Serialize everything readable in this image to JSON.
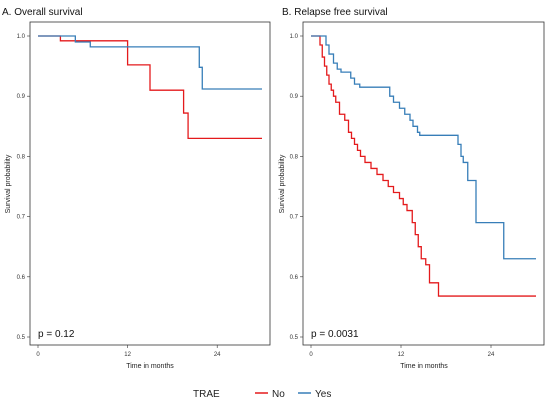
{
  "legend": {
    "title": "TRAE",
    "items": [
      "No",
      "Yes"
    ]
  },
  "colors": {
    "No": "#e41a1c",
    "Yes": "#377eb8"
  },
  "chart_data": [
    {
      "type": "line",
      "title": "A. Overall survival",
      "xlabel": "Time in months",
      "ylabel": "Survival probability",
      "xlim": [
        0,
        30
      ],
      "ylim": [
        0.5,
        1.0
      ],
      "xticks": [
        0,
        12,
        24
      ],
      "yticks": [
        0.5,
        0.6,
        0.7,
        0.8,
        0.9,
        1.0
      ],
      "grid": false,
      "annotation": "p = 0.12",
      "step": true,
      "series": [
        {
          "name": "No",
          "x": [
            0,
            3,
            12,
            12,
            15,
            15,
            19.5,
            19.5,
            20.1,
            20.1,
            30
          ],
          "y": [
            1.0,
            0.992,
            0.992,
            0.952,
            0.952,
            0.91,
            0.91,
            0.872,
            0.872,
            0.83,
            0.83
          ]
        },
        {
          "name": "Yes",
          "x": [
            0,
            5,
            5,
            7,
            7,
            21.6,
            21.6,
            22,
            22,
            30
          ],
          "y": [
            1.0,
            1.0,
            0.99,
            0.99,
            0.982,
            0.982,
            0.948,
            0.948,
            0.912,
            0.912
          ]
        }
      ]
    },
    {
      "type": "line",
      "title": "B. Relapse free survival",
      "xlabel": "Time in months",
      "ylabel": "Survival probability",
      "xlim": [
        0,
        30
      ],
      "ylim": [
        0.5,
        1.0
      ],
      "xticks": [
        0,
        12,
        24
      ],
      "yticks": [
        0.5,
        0.6,
        0.7,
        0.8,
        0.9,
        1.0
      ],
      "grid": false,
      "annotation": "p = 0.0031",
      "step": true,
      "series": [
        {
          "name": "No",
          "x": [
            0,
            1.2,
            1.5,
            1.8,
            2.1,
            2.4,
            2.7,
            3.0,
            3.3,
            3.8,
            4.5,
            5.0,
            5.4,
            5.8,
            6.2,
            6.6,
            7.2,
            8.0,
            8.8,
            9.6,
            10.3,
            11.0,
            11.8,
            12.3,
            12.8,
            13.5,
            13.9,
            14.3,
            14.7,
            15.3,
            15.8,
            17.0,
            30
          ],
          "y": [
            1.0,
            0.985,
            0.965,
            0.95,
            0.935,
            0.92,
            0.91,
            0.9,
            0.89,
            0.87,
            0.86,
            0.84,
            0.83,
            0.82,
            0.81,
            0.8,
            0.79,
            0.78,
            0.77,
            0.76,
            0.75,
            0.74,
            0.73,
            0.72,
            0.71,
            0.69,
            0.67,
            0.65,
            0.63,
            0.62,
            0.59,
            0.568,
            0.568
          ]
        },
        {
          "name": "Yes",
          "x": [
            0,
            2,
            2.4,
            3,
            3.5,
            4,
            5.3,
            5.8,
            6.5,
            8,
            10.5,
            11,
            11.8,
            12.5,
            13.2,
            13.6,
            14.2,
            14.5,
            19,
            19.6,
            20,
            20.3,
            20.9,
            22,
            25,
            25.7,
            30
          ],
          "y": [
            1.0,
            0.985,
            0.97,
            0.955,
            0.945,
            0.94,
            0.93,
            0.92,
            0.915,
            0.915,
            0.9,
            0.89,
            0.88,
            0.87,
            0.86,
            0.85,
            0.84,
            0.835,
            0.835,
            0.82,
            0.8,
            0.79,
            0.76,
            0.69,
            0.69,
            0.63,
            0.63
          ]
        }
      ]
    }
  ]
}
